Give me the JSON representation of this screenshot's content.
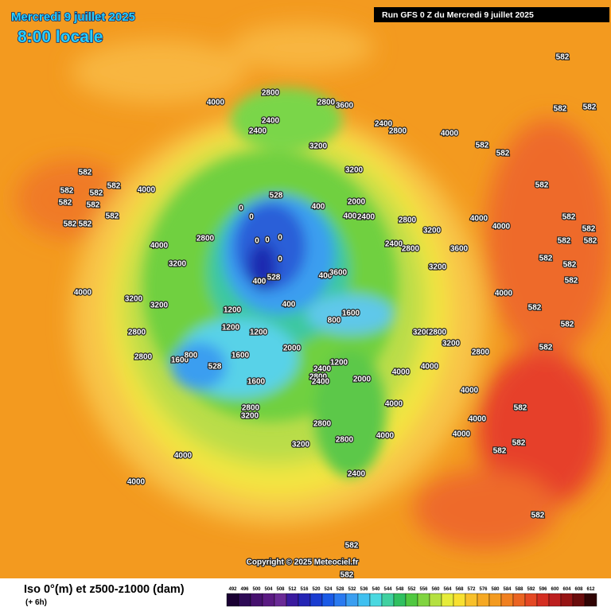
{
  "header": {
    "date": "Mercredi 9 juillet 2025",
    "time": "8:00 locale",
    "run": "Run GFS 0 Z du Mercredi 9 juillet 2025"
  },
  "footer": {
    "copyright": "Copyright © 2025 Meteociel.fr",
    "title": "Iso 0°(m) et z500-z1000 (dam)",
    "step": "(+ 6h)"
  },
  "map_labels": [
    582,
    582,
    582,
    582,
    582,
    582,
    582,
    582,
    582,
    582,
    582,
    582,
    582,
    582,
    582,
    582,
    582,
    582,
    582,
    582,
    582,
    582,
    582,
    582,
    582,
    582,
    582,
    582,
    582,
    582,
    582,
    4000,
    4000,
    4000,
    4000,
    4000,
    4000,
    4000,
    4000,
    4000,
    4000,
    4000,
    4000,
    4000,
    4000,
    4000,
    4000,
    4000,
    3200,
    3200,
    3200,
    3200,
    3200,
    3200,
    3200,
    3200,
    3200,
    3200,
    3200,
    2800,
    2800,
    2800,
    2800,
    2800,
    2800,
    2800,
    2800,
    2800,
    2800,
    2800,
    2800,
    2800,
    2800,
    2400,
    2400,
    2400,
    2400,
    2400,
    2400,
    2400,
    2400,
    400,
    400,
    400,
    400,
    400,
    0,
    0,
    0,
    0,
    0,
    0,
    1200,
    1200,
    1200,
    1200,
    1600,
    1600,
    1600,
    1600,
    800,
    800,
    528,
    528,
    528,
    2000,
    2000,
    2000,
    3600,
    3600,
    3600
  ],
  "legend": {
    "ticks": [
      492,
      496,
      500,
      504,
      508,
      512,
      516,
      520,
      524,
      528,
      532,
      536,
      540,
      544,
      548,
      552,
      556,
      560,
      564,
      568,
      572,
      576,
      580,
      584,
      588,
      592,
      596,
      600,
      604,
      608,
      612
    ],
    "colors": [
      "#1a0033",
      "#2d0a55",
      "#46116e",
      "#5a1a82",
      "#6a2a96",
      "#3a1a9e",
      "#2424b4",
      "#1a3cd0",
      "#1a5ae6",
      "#2a7af0",
      "#3a9ef0",
      "#40c0f0",
      "#4ad8e0",
      "#40d0a0",
      "#30c060",
      "#50c840",
      "#80d440",
      "#b4e040",
      "#e6ec3a",
      "#f8e030",
      "#f8c02a",
      "#f5a823",
      "#f39a1f",
      "#f08020",
      "#ea6422",
      "#e44824",
      "#d42e22",
      "#bc1e1e",
      "#961414",
      "#6a0c0c",
      "#300404"
    ]
  }
}
